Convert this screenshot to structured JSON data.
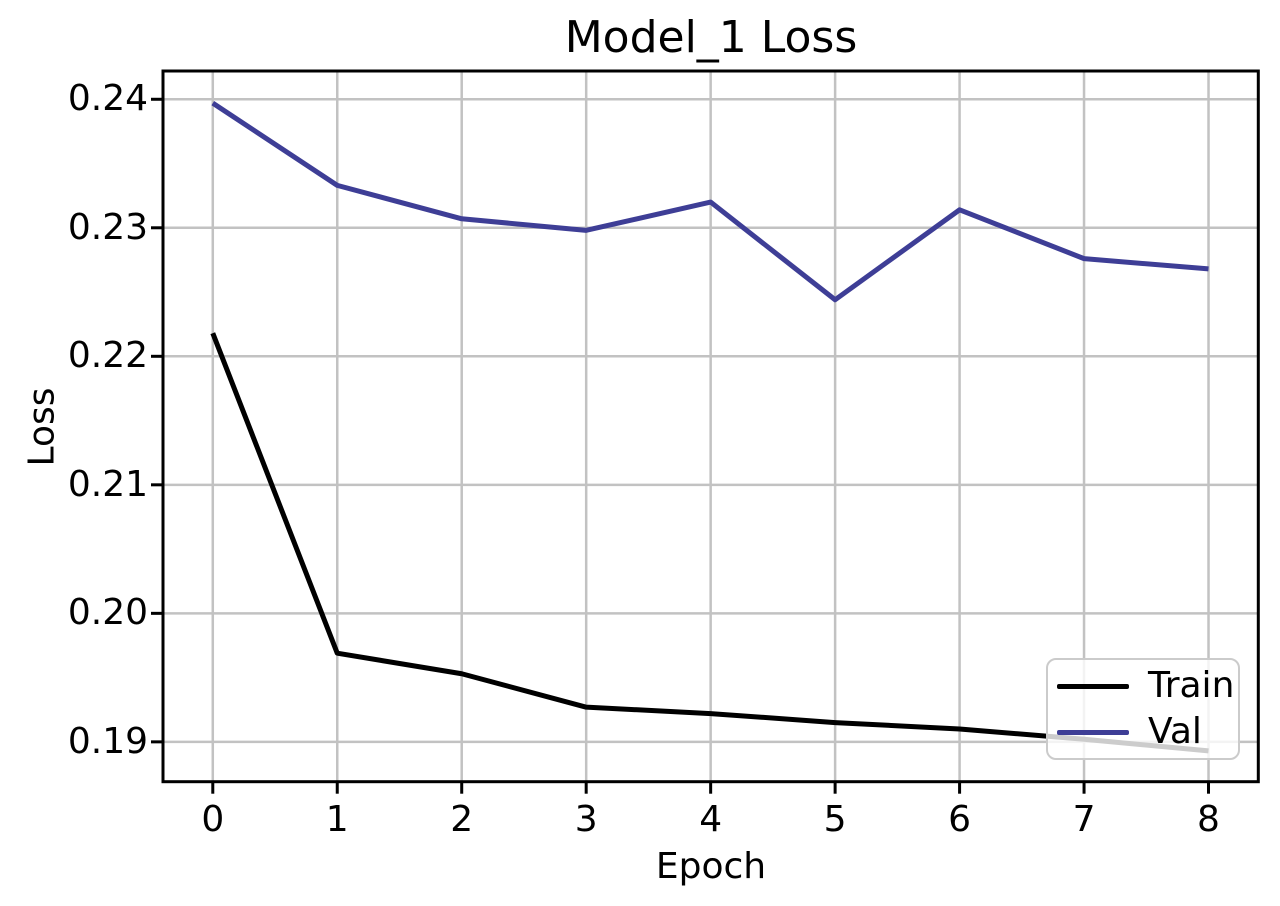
{
  "figure": {
    "background": "#ffffff"
  },
  "chart_data": {
    "type": "line",
    "title": "Model_1 Loss",
    "xlabel": "Epoch",
    "ylabel": "Loss",
    "x": [
      0,
      1,
      2,
      3,
      4,
      5,
      6,
      7,
      8
    ],
    "series": [
      {
        "name": "Train",
        "color": "#000000",
        "values": [
          0.2218,
          0.1969,
          0.1953,
          0.1927,
          0.1922,
          0.1915,
          0.191,
          0.1902,
          0.1893
        ]
      },
      {
        "name": "Val",
        "color": "#3e3e96",
        "values": [
          0.2397,
          0.2333,
          0.2307,
          0.2298,
          0.232,
          0.2244,
          0.2314,
          0.2276,
          0.2268
        ]
      }
    ],
    "xlim": [
      -0.4,
      8.4
    ],
    "ylim": [
      0.1869,
      0.2422
    ],
    "x_ticks": [
      0,
      1,
      2,
      3,
      4,
      5,
      6,
      7,
      8
    ],
    "x_tick_labels": [
      "0",
      "1",
      "2",
      "3",
      "4",
      "5",
      "6",
      "7",
      "8"
    ],
    "y_ticks": [
      0.19,
      0.2,
      0.21,
      0.22,
      0.23,
      0.24
    ],
    "y_tick_labels": [
      "0.19",
      "0.20",
      "0.21",
      "0.22",
      "0.23",
      "0.24"
    ],
    "grid": true,
    "grid_color": "#c2c2c2",
    "axis_color": "#000000",
    "line_width": 5,
    "legend": {
      "position": "lower right",
      "entries": [
        "Train",
        "Val"
      ]
    }
  }
}
